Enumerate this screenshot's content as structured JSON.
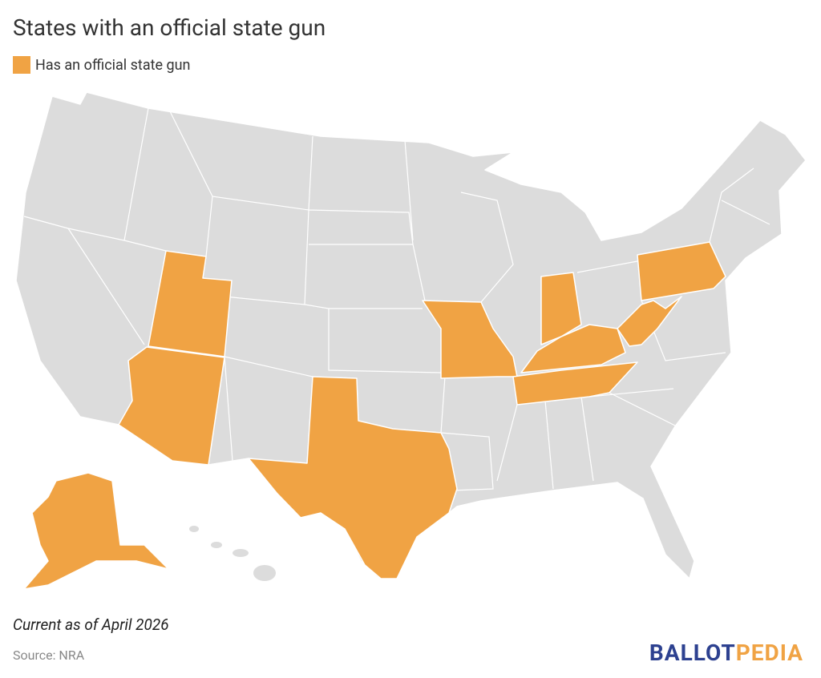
{
  "title": "States with an official state gun",
  "legend": {
    "label": "Has an official state gun",
    "color": "#f0a344"
  },
  "base_color": "#dcdcdc",
  "note": "Current as of April 2026",
  "source": "Source: NRA",
  "logo": {
    "part1": "BALLOT",
    "part2": "PEDIA",
    "color1": "#2d4190",
    "color2": "#f0a344"
  }
}
